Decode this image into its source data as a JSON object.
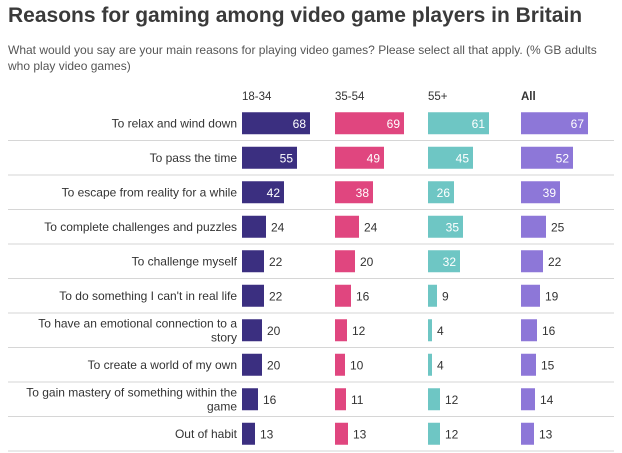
{
  "header": {
    "title": "Reasons for gaming among video game players in Britain",
    "subtitle": "What would you say are your main reasons for playing video games? Please select all that apply. (% GB adults who play video games)"
  },
  "chart_data": {
    "type": "bar",
    "orientation": "horizontal",
    "layout": "small-multiples",
    "title": "Reasons for gaming among video game players in Britain",
    "subtitle": "What would you say are your main reasons for playing video games? Please select all that apply. (% GB adults who play video games)",
    "categories": [
      [
        "To relax and wind down"
      ],
      [
        "To pass the time"
      ],
      [
        "To escape from reality for a while"
      ],
      [
        "To complete challenges and puzzles"
      ],
      [
        "To challenge myself"
      ],
      [
        "To do something I can't in real life"
      ],
      [
        "To have an emotional connection to a",
        "story"
      ],
      [
        "To create a world of my own"
      ],
      [
        "To gain mastery of something within the",
        "game"
      ],
      [
        "Out of habit"
      ]
    ],
    "series": [
      {
        "name": "18-34",
        "color": "#3b2f80",
        "values": [
          68,
          55,
          42,
          24,
          22,
          22,
          20,
          20,
          16,
          13
        ]
      },
      {
        "name": "35-54",
        "color": "#e0467f",
        "values": [
          69,
          49,
          38,
          24,
          20,
          16,
          12,
          10,
          11,
          13
        ]
      },
      {
        "name": "55+",
        "color": "#6ec6c4",
        "values": [
          61,
          45,
          26,
          35,
          32,
          9,
          4,
          4,
          12,
          12
        ]
      },
      {
        "name": "All",
        "color": "#8d77d8",
        "values": [
          67,
          52,
          39,
          25,
          22,
          19,
          16,
          15,
          14,
          13
        ]
      }
    ],
    "xlim": [
      0,
      80
    ],
    "legend": "column-headers",
    "grid": false
  }
}
